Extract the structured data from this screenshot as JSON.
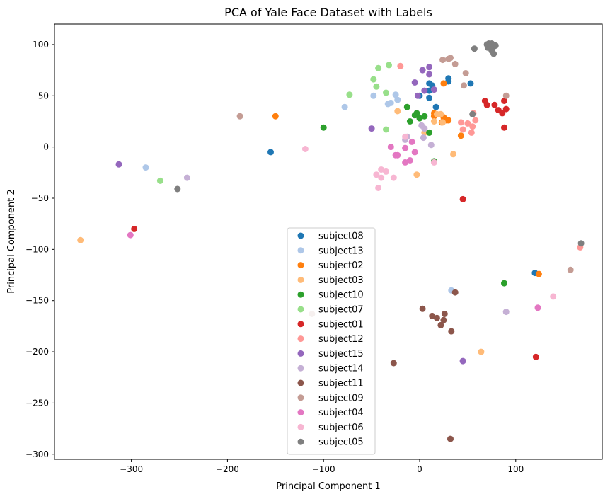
{
  "chart_data": {
    "type": "scatter",
    "title": "PCA of Yale Face Dataset with Labels",
    "xlabel": "Principal Component 1",
    "ylabel": "Principal Component 2",
    "xlim": [
      -380,
      190
    ],
    "ylim": [
      -305,
      120
    ],
    "xticks": [
      -300,
      -200,
      -100,
      0,
      100
    ],
    "yticks": [
      100,
      50,
      0,
      -50,
      -100,
      -150,
      -200,
      -250,
      -300
    ],
    "grid": false,
    "legend_position": "lower-center",
    "series": [
      {
        "name": "subject08",
        "color": "#1f77b4",
        "points": [
          [
            -155,
            -5
          ],
          [
            0,
            50
          ],
          [
            10,
            62
          ],
          [
            13,
            60
          ],
          [
            30,
            67
          ],
          [
            30,
            64
          ],
          [
            10,
            55
          ],
          [
            10,
            48
          ],
          [
            17,
            39
          ],
          [
            53,
            62
          ],
          [
            120,
            -123
          ]
        ]
      },
      {
        "name": "subject13",
        "color": "#aec7e8",
        "points": [
          [
            -285,
            -20
          ],
          [
            -78,
            39
          ],
          [
            -48,
            50
          ],
          [
            -25,
            51
          ],
          [
            -23,
            46
          ],
          [
            -30,
            43
          ],
          [
            -33,
            42
          ],
          [
            33,
            -140
          ]
        ]
      },
      {
        "name": "subject02",
        "color": "#ff7f0e",
        "points": [
          [
            -150,
            30
          ],
          [
            15,
            30
          ],
          [
            15,
            33
          ],
          [
            25,
            62
          ],
          [
            28,
            26
          ],
          [
            23,
            24
          ],
          [
            30,
            26
          ],
          [
            25,
            29
          ],
          [
            43,
            11
          ],
          [
            124,
            -124
          ]
        ]
      },
      {
        "name": "subject03",
        "color": "#ffbb78",
        "points": [
          [
            -353,
            -91
          ],
          [
            -23,
            35
          ],
          [
            -3,
            -27
          ],
          [
            15,
            25
          ],
          [
            18,
            32
          ],
          [
            24,
            24
          ],
          [
            35,
            -7
          ],
          [
            22,
            32
          ],
          [
            5,
            14
          ],
          [
            64,
            -200
          ]
        ]
      },
      {
        "name": "subject10",
        "color": "#2ca02c",
        "points": [
          [
            -100,
            19
          ],
          [
            -13,
            39
          ],
          [
            -5,
            31
          ],
          [
            0,
            28
          ],
          [
            -3,
            33
          ],
          [
            5,
            30
          ],
          [
            -10,
            25
          ],
          [
            10,
            14
          ],
          [
            15,
            -14
          ],
          [
            88,
            -133
          ]
        ]
      },
      {
        "name": "subject07",
        "color": "#98df8a",
        "points": [
          [
            -270,
            -33
          ],
          [
            -73,
            51
          ],
          [
            -43,
            77
          ],
          [
            -48,
            66
          ],
          [
            -45,
            59
          ],
          [
            -35,
            53
          ],
          [
            -32,
            80
          ],
          [
            -35,
            17
          ]
        ]
      },
      {
        "name": "subject01",
        "color": "#d62728",
        "points": [
          [
            -297,
            -80
          ],
          [
            45,
            -51
          ],
          [
            68,
            45
          ],
          [
            70,
            41
          ],
          [
            78,
            41
          ],
          [
            82,
            36
          ],
          [
            86,
            33
          ],
          [
            88,
            45
          ],
          [
            90,
            37
          ],
          [
            88,
            19
          ],
          [
            121,
            -205
          ]
        ]
      },
      {
        "name": "subject12",
        "color": "#ff9896",
        "points": [
          [
            -20,
            79
          ],
          [
            43,
            24
          ],
          [
            45,
            17
          ],
          [
            50,
            23
          ],
          [
            55,
            20
          ],
          [
            54,
            14
          ],
          [
            58,
            26
          ],
          [
            56,
            33
          ],
          [
            167,
            -98
          ]
        ]
      },
      {
        "name": "subject15",
        "color": "#9467bd",
        "points": [
          [
            -313,
            -17
          ],
          [
            -50,
            18
          ],
          [
            -5,
            63
          ],
          [
            -2,
            50
          ],
          [
            3,
            75
          ],
          [
            10,
            71
          ],
          [
            10,
            78
          ],
          [
            15,
            56
          ],
          [
            5,
            55
          ],
          [
            45,
            -209
          ]
        ]
      },
      {
        "name": "subject14",
        "color": "#c5b0d5",
        "points": [
          [
            -242,
            -30
          ],
          [
            -13,
            10
          ],
          [
            2,
            21
          ],
          [
            5,
            18
          ],
          [
            4,
            9
          ],
          [
            -15,
            7
          ],
          [
            12,
            2
          ],
          [
            90,
            -161
          ]
        ]
      },
      {
        "name": "subject11",
        "color": "#8c564b",
        "points": [
          [
            -27,
            -211
          ],
          [
            3,
            -158
          ],
          [
            13,
            -165
          ],
          [
            18,
            -167
          ],
          [
            22,
            -174
          ],
          [
            25,
            -169
          ],
          [
            26,
            -163
          ],
          [
            33,
            -180
          ],
          [
            37,
            -142
          ],
          [
            32,
            -285
          ]
        ]
      },
      {
        "name": "subject09",
        "color": "#c49c94",
        "points": [
          [
            -187,
            30
          ],
          [
            -112,
            -163
          ],
          [
            24,
            85
          ],
          [
            30,
            86
          ],
          [
            32,
            87
          ],
          [
            37,
            81
          ],
          [
            48,
            72
          ],
          [
            46,
            60
          ],
          [
            90,
            50
          ],
          [
            157,
            -120
          ]
        ]
      },
      {
        "name": "subject04",
        "color": "#e377c2",
        "points": [
          [
            -301,
            -86
          ],
          [
            -30,
            0
          ],
          [
            -25,
            -8
          ],
          [
            -23,
            -8
          ],
          [
            -15,
            -15
          ],
          [
            -10,
            -13
          ],
          [
            -15,
            -1
          ],
          [
            -5,
            -5
          ],
          [
            -8,
            5
          ],
          [
            123,
            -157
          ]
        ]
      },
      {
        "name": "subject06",
        "color": "#f7b6d2",
        "points": [
          [
            -119,
            -2
          ],
          [
            -43,
            -40
          ],
          [
            -45,
            -27
          ],
          [
            -40,
            -22
          ],
          [
            -35,
            -24
          ],
          [
            -40,
            -30
          ],
          [
            -27,
            -30
          ],
          [
            -15,
            10
          ],
          [
            15,
            -15
          ],
          [
            139,
            -146
          ]
        ]
      },
      {
        "name": "subject05",
        "color": "#7f7f7f",
        "points": [
          [
            -252,
            -41
          ],
          [
            57,
            96
          ],
          [
            55,
            32
          ],
          [
            70,
            100
          ],
          [
            71,
            97
          ],
          [
            72,
            101
          ],
          [
            75,
            101
          ],
          [
            77,
            98
          ],
          [
            79,
            99
          ],
          [
            75,
            94
          ],
          [
            77,
            91
          ],
          [
            168,
            -94
          ]
        ]
      }
    ]
  }
}
